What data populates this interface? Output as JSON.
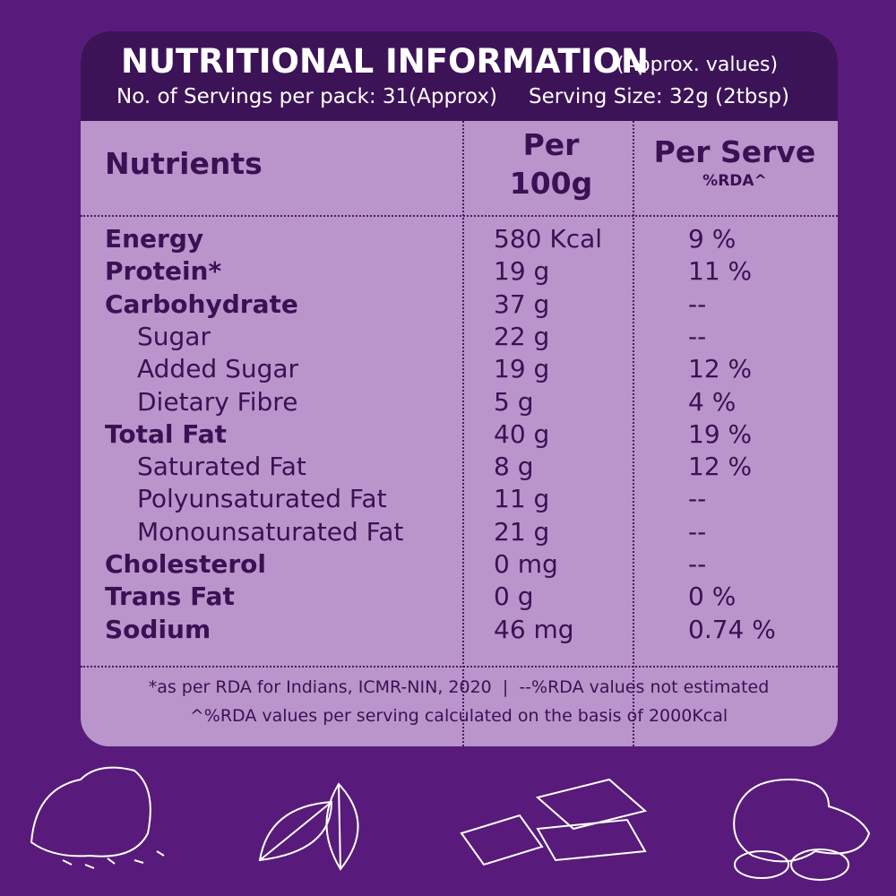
{
  "header": {
    "title": "NUTRITIONAL INFORMATION",
    "title_note": "(Approx. values)",
    "servings": "No. of Servings per pack: 31(Approx)",
    "serving_size": "Serving Size: 32g (2tbsp)"
  },
  "table": {
    "columns": [
      "Nutrients",
      [
        "Per",
        "100g"
      ],
      [
        "Per Serve",
        "%RDA^"
      ]
    ],
    "rows": [
      [
        "Energy",
        "580 Kcal",
        "9 %"
      ],
      [
        "Protein*",
        "19 g",
        "11 %"
      ],
      [
        "Carbohydrate",
        "37 g",
        "--"
      ],
      [
        "Sugar",
        "22 g",
        "--"
      ],
      [
        "Added Sugar",
        "19 g",
        "12 %"
      ],
      [
        "Dietary Fibre",
        "5 g",
        "4 %"
      ],
      [
        "Total Fat",
        "40 g",
        "19 %"
      ],
      [
        "Saturated Fat",
        "8 g",
        "12 %"
      ],
      [
        "Polyunsaturated Fat",
        "11 g",
        "--"
      ],
      [
        "Monounsaturated Fat",
        "21 g",
        "--"
      ],
      [
        "Cholesterol",
        "0 mg",
        "--"
      ],
      [
        "Trans Fat",
        "0 g",
        "0 %"
      ],
      [
        "Sodium",
        "46 mg",
        "0.74 %"
      ]
    ]
  },
  "footnotes": [
    "*as per RDA for Indians, ICMR-NIN, 2020  |  --%RDA values not estimated",
    "^%RDA values per serving calculated on the basis of 2000Kcal"
  ]
}
